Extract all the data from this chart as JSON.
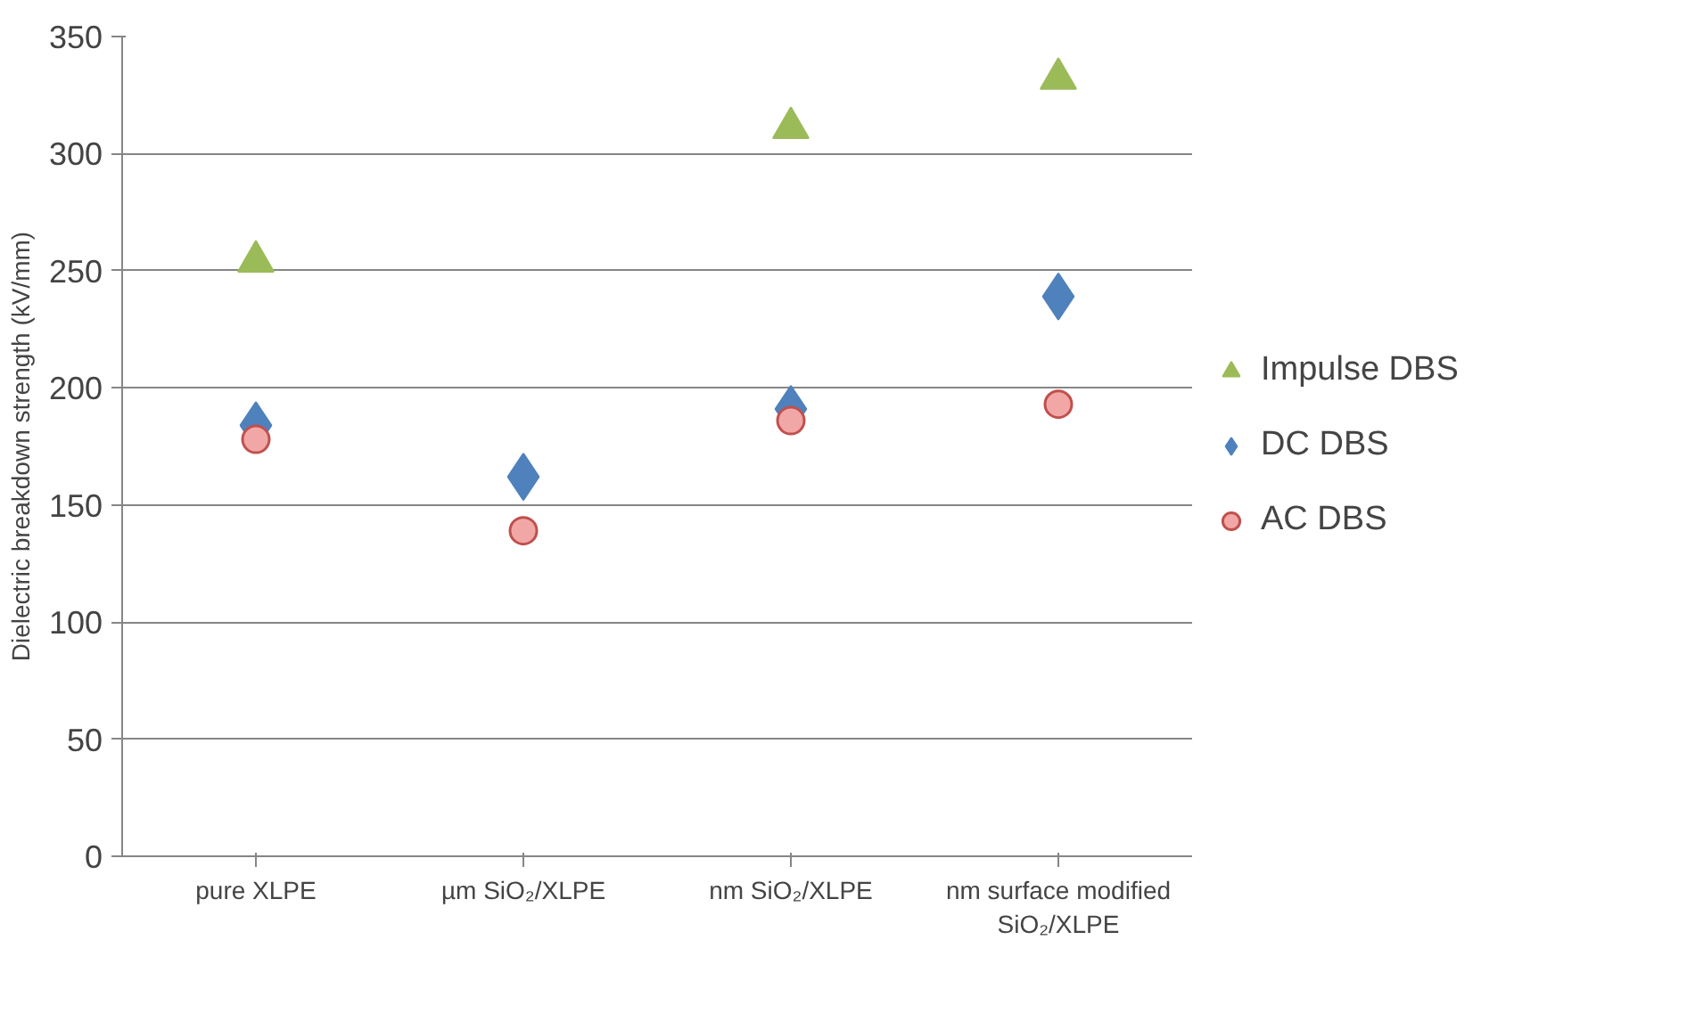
{
  "chart_data": {
    "type": "scatter",
    "ylabel": "Dielectric breakdown strength (kV/mm)",
    "categories": [
      "pure XLPE",
      "µm SiO₂/XLPE",
      "nm SiO₂/XLPE",
      "nm surface modified SiO₂/XLPE"
    ],
    "series": [
      {
        "name": "Impulse DBS",
        "color": "#9bbb59",
        "marker": "triangle",
        "values": [
          254,
          null,
          311,
          332
        ]
      },
      {
        "name": "DC DBS",
        "color": "#4f81bd",
        "marker": "diamond",
        "values": [
          184,
          162,
          191,
          239
        ]
      },
      {
        "name": "AC DBS",
        "color": "#f2a7a7",
        "marker": "circle",
        "values": [
          178,
          139,
          186,
          193
        ]
      }
    ],
    "ylim": [
      0,
      350
    ],
    "yticks": [
      0,
      50,
      100,
      150,
      200,
      250,
      300,
      350
    ],
    "grid": "y",
    "legend": "right"
  }
}
